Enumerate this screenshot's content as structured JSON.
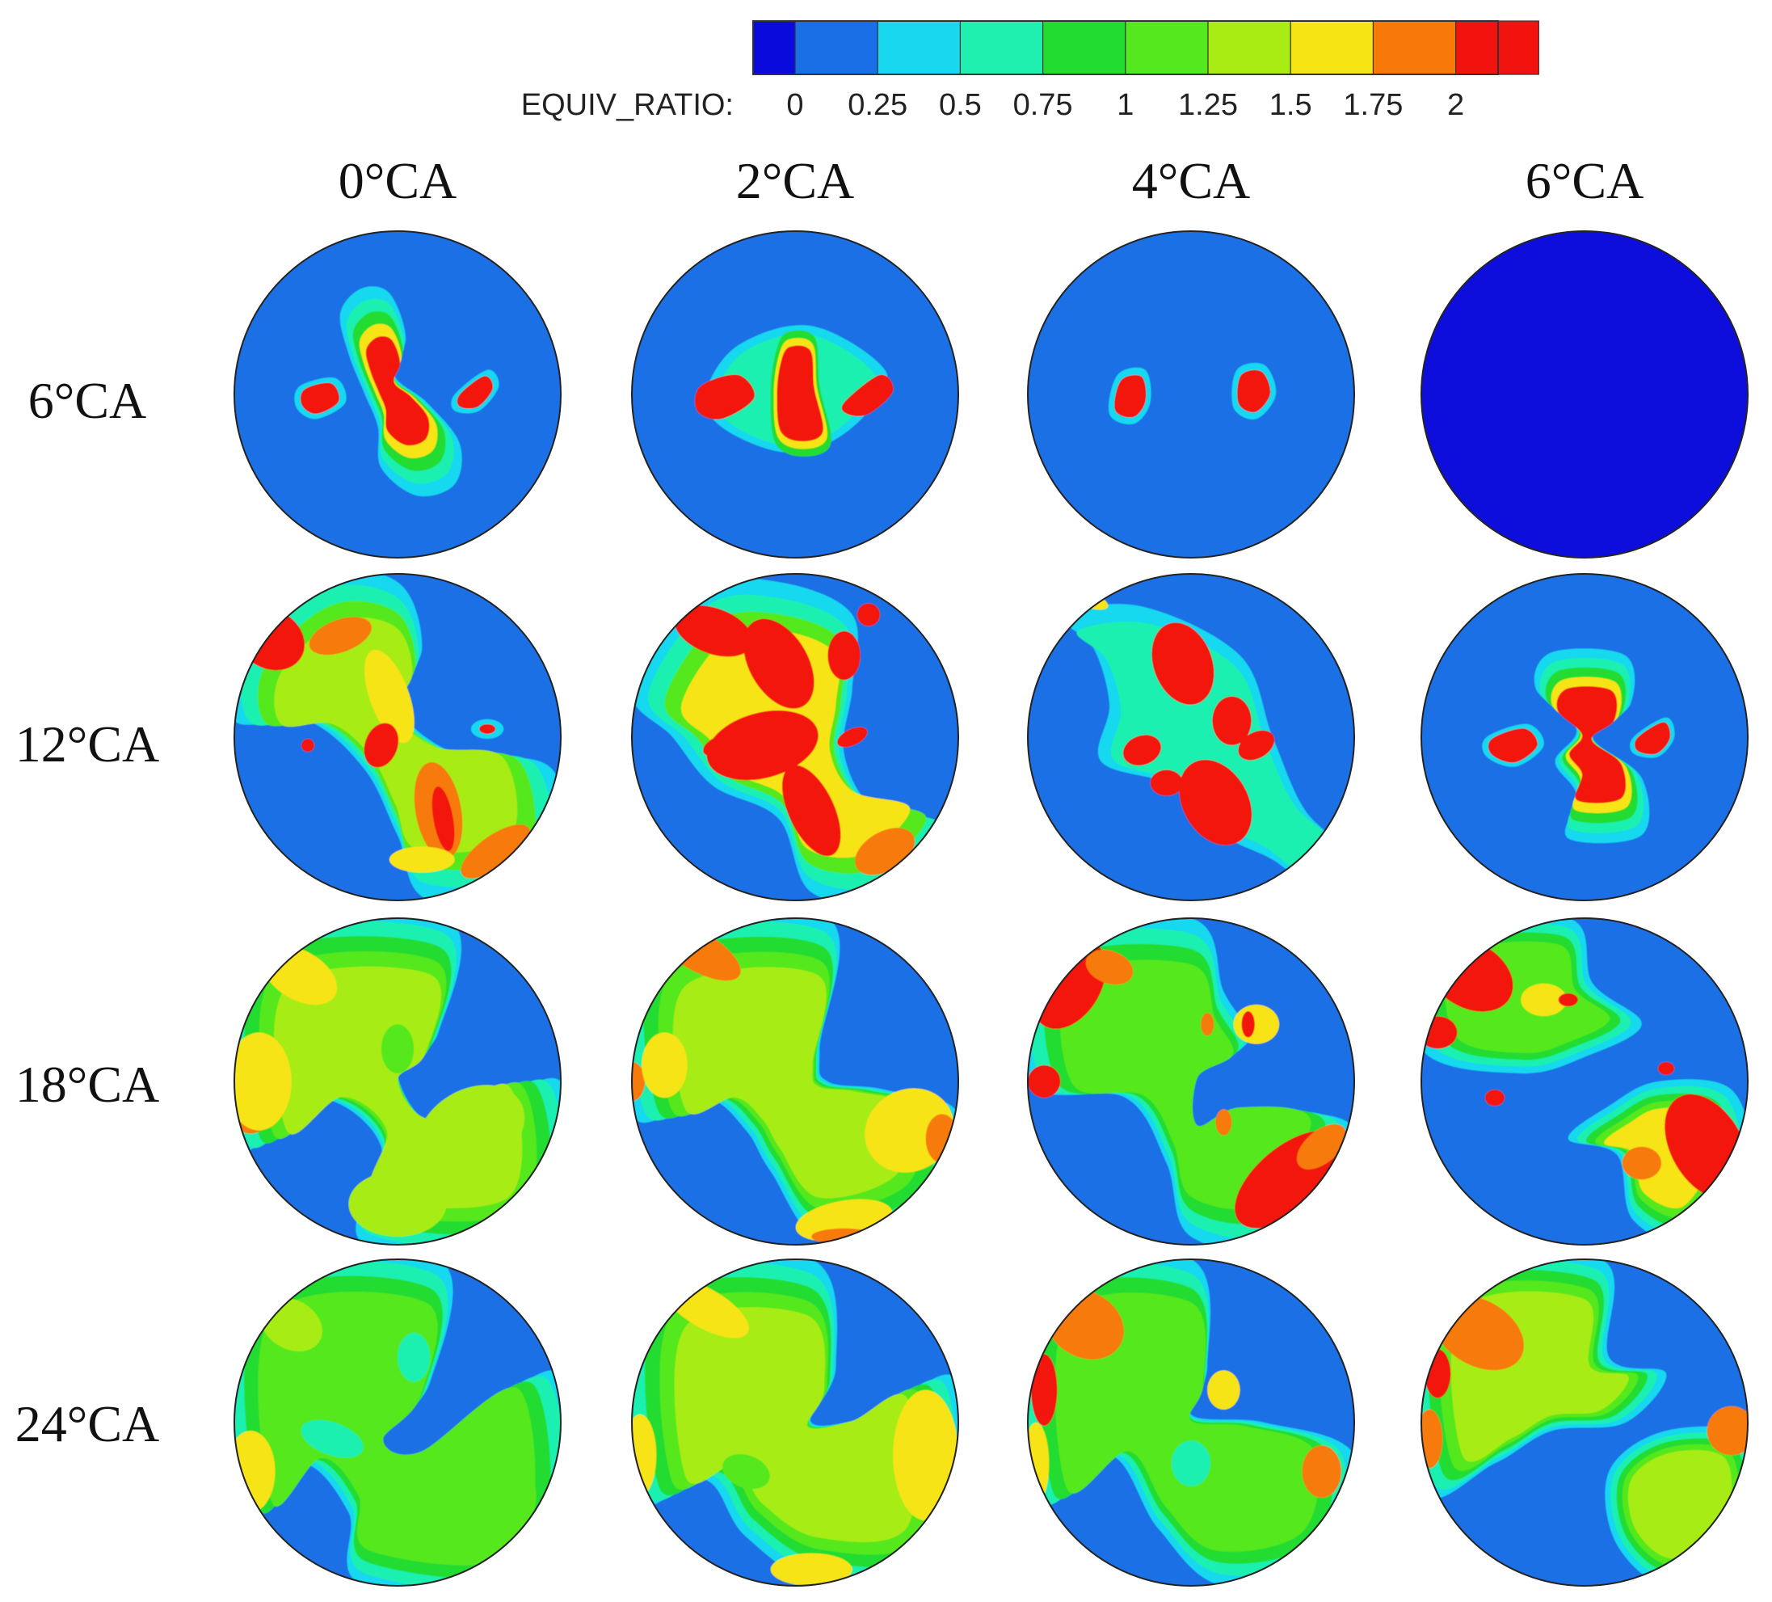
{
  "legend": {
    "label": "EQUIV_RATIO:",
    "tick_labels": [
      "0",
      "0.25",
      "0.5",
      "0.75",
      "1",
      "1.25",
      "1.5",
      "1.75",
      "2"
    ],
    "level_colors": [
      "#0a0adc",
      "#1a6fe6",
      "#18d8ef",
      "#1ff0b0",
      "#22dc32",
      "#55e81e",
      "#a8ec14",
      "#f7e415",
      "#f77a09",
      "#f2120e"
    ],
    "outline_color": "#333333"
  },
  "column_labels": [
    "0°CA",
    "2°CA",
    "4°CA",
    "6°CA"
  ],
  "row_labels": [
    "6°CA",
    "12°CA",
    "18°CA",
    "24°CA"
  ],
  "panel_outline_color": "#222222",
  "background_level_color": "#1a6fe6"
}
